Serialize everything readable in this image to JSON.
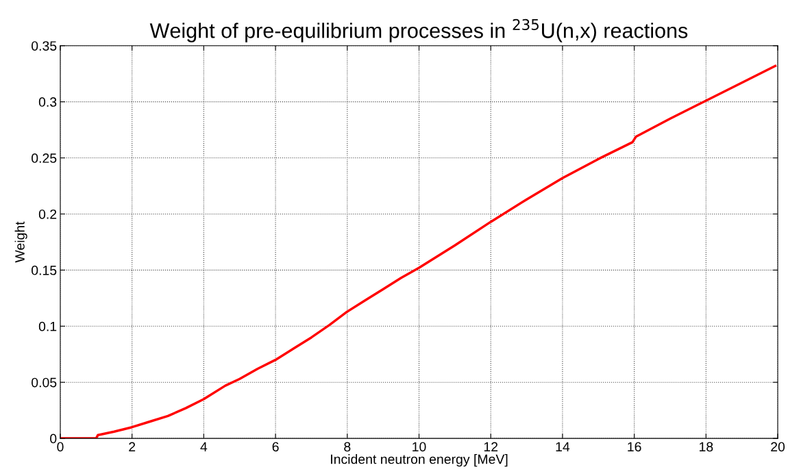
{
  "chart_data": {
    "type": "line",
    "title": "Weight of pre-equilibrium processes in $^{235}$U(n,x) reactions",
    "xlabel": "Incident neutron energy [MeV]",
    "ylabel": "Weight",
    "series": [
      {
        "color": "#ff0000",
        "x": [
          0,
          1,
          1.05,
          1.5,
          2,
          2.5,
          3,
          3.5,
          4,
          4.6,
          5,
          5.5,
          6,
          6.5,
          7,
          7.5,
          8,
          8.5,
          9,
          9.5,
          10,
          11,
          12,
          13,
          14,
          15,
          15.95,
          16.05,
          17,
          18,
          19,
          19.93
        ],
        "values": [
          0,
          0,
          0.003,
          0.006,
          0.01,
          0.015,
          0.02,
          0.027,
          0.035,
          0.047,
          0.053,
          0.062,
          0.07,
          0.08,
          0.09,
          0.101,
          0.113,
          0.123,
          0.133,
          0.143,
          0.152,
          0.172,
          0.193,
          0.213,
          0.232,
          0.249,
          0.264,
          0.269,
          0.285,
          0.301,
          0.317,
          0.332
        ]
      }
    ],
    "xlim": [
      0,
      20
    ],
    "ylim": [
      0,
      0.35
    ],
    "xticks": [
      0,
      2,
      4,
      6,
      8,
      10,
      12,
      14,
      16,
      18,
      20
    ],
    "yticks": [
      0,
      0.05,
      0.1,
      0.15,
      0.2,
      0.25,
      0.3,
      0.35
    ],
    "grid": true,
    "line_style": "solid",
    "marker": "none"
  }
}
